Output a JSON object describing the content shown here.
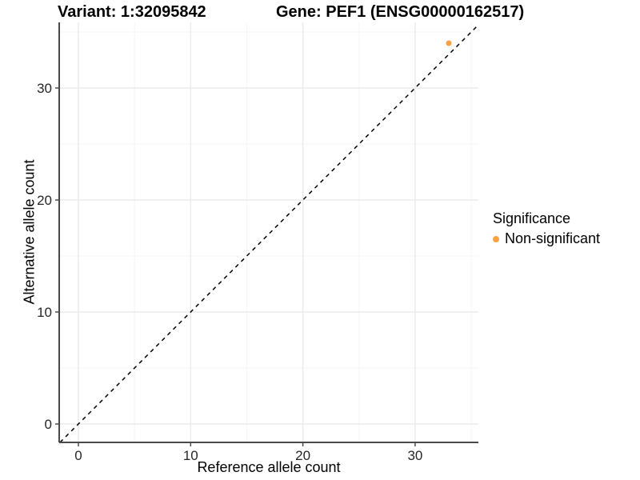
{
  "title": {
    "variant": "Variant: 1:32095842",
    "gene": "Gene: PEF1 (ENSG00000162517)"
  },
  "axes": {
    "x_label": "Reference allele count",
    "y_label": "Alternative allele count",
    "x_tick_labels": [
      "0",
      "10",
      "20",
      "30"
    ],
    "y_tick_labels": [
      "0",
      "10",
      "20",
      "30"
    ]
  },
  "legend": {
    "title": "Significance",
    "items": [
      {
        "label": "Non-significant",
        "color": "#F9A243"
      }
    ]
  },
  "colors": {
    "background": "#ffffff",
    "axis_line": "#4a4a4a",
    "tick_text": "#262626",
    "grid_major": "#ebebeb",
    "grid_minor": "#f5f5f5",
    "identity_line": "#000000",
    "point": "#F9A243"
  },
  "chart_data": {
    "type": "scatter",
    "title": "Variant: 1:32095842    Gene: PEF1 (ENSG00000162517)",
    "xlabel": "Reference allele count",
    "ylabel": "Alternative allele count",
    "xlim": [
      -1.7,
      35.7
    ],
    "ylim": [
      -1.6,
      35.9
    ],
    "x_breaks": [
      0,
      10,
      20,
      30
    ],
    "y_breaks": [
      0,
      10,
      20,
      30
    ],
    "minor_break_offset": 5,
    "grid": true,
    "legend_position": "right",
    "reference_line": {
      "type": "identity",
      "slope": 1,
      "intercept": 0,
      "style": "dashed"
    },
    "series": [
      {
        "name": "Non-significant",
        "color": "#F9A243",
        "points": [
          {
            "x": 33,
            "y": 34
          }
        ]
      }
    ]
  }
}
